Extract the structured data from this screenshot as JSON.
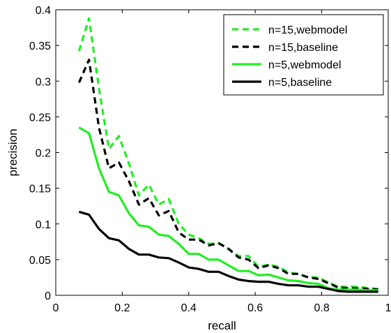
{
  "chart_data": {
    "type": "line",
    "title": "",
    "xlabel": "recall",
    "ylabel": "precision",
    "xlim": [
      0,
      1
    ],
    "ylim": [
      0,
      0.4
    ],
    "xticks": [
      0,
      0.2,
      0.4,
      0.6,
      0.8,
      1
    ],
    "xtick_labels": [
      "0",
      "0.2",
      "0.4",
      "0.6",
      "0.8",
      "1"
    ],
    "yticks": [
      0,
      0.05,
      0.1,
      0.15,
      0.2,
      0.25,
      0.3,
      0.35,
      0.4
    ],
    "ytick_labels": [
      "0",
      "0.05",
      "0.1",
      "0.15",
      "0.2",
      "0.25",
      "0.3",
      "0.35",
      "0.4"
    ],
    "grid": false,
    "legend_position": "top-right",
    "x": [
      0.07,
      0.1,
      0.13,
      0.16,
      0.19,
      0.22,
      0.25,
      0.28,
      0.31,
      0.34,
      0.37,
      0.4,
      0.43,
      0.46,
      0.49,
      0.52,
      0.55,
      0.58,
      0.61,
      0.64,
      0.67,
      0.7,
      0.73,
      0.76,
      0.79,
      0.82,
      0.85,
      0.88,
      0.91,
      0.94,
      0.97
    ],
    "series": [
      {
        "name": "n=15,webmodel",
        "color": "#22ee22",
        "style": "dashed",
        "values": [
          0.342,
          0.388,
          0.29,
          0.205,
          0.223,
          0.185,
          0.14,
          0.155,
          0.127,
          0.135,
          0.1,
          0.085,
          0.08,
          0.072,
          0.073,
          0.065,
          0.055,
          0.055,
          0.04,
          0.043,
          0.04,
          0.032,
          0.03,
          0.025,
          0.025,
          0.018,
          0.012,
          0.012,
          0.012,
          0.01,
          0.009
        ]
      },
      {
        "name": "n=15,baseline",
        "color": "#000000",
        "style": "dashed",
        "values": [
          0.298,
          0.33,
          0.235,
          0.178,
          0.186,
          0.16,
          0.127,
          0.136,
          0.112,
          0.118,
          0.088,
          0.078,
          0.078,
          0.07,
          0.073,
          0.065,
          0.053,
          0.05,
          0.038,
          0.042,
          0.038,
          0.03,
          0.03,
          0.025,
          0.023,
          0.017,
          0.011,
          0.01,
          0.01,
          0.009,
          0.008
        ]
      },
      {
        "name": "n=5,webmodel",
        "color": "#22ee22",
        "style": "solid",
        "values": [
          0.235,
          0.227,
          0.178,
          0.145,
          0.14,
          0.115,
          0.098,
          0.096,
          0.085,
          0.083,
          0.072,
          0.058,
          0.058,
          0.05,
          0.05,
          0.042,
          0.034,
          0.034,
          0.028,
          0.029,
          0.025,
          0.021,
          0.02,
          0.017,
          0.016,
          0.01,
          0.008,
          0.008,
          0.008,
          0.007,
          0.007
        ]
      },
      {
        "name": "n=5,baseline",
        "color": "#000000",
        "style": "solid",
        "values": [
          0.117,
          0.113,
          0.093,
          0.08,
          0.077,
          0.065,
          0.057,
          0.057,
          0.053,
          0.052,
          0.046,
          0.039,
          0.037,
          0.033,
          0.033,
          0.027,
          0.022,
          0.02,
          0.019,
          0.019,
          0.016,
          0.014,
          0.014,
          0.012,
          0.012,
          0.009,
          0.006,
          0.005,
          0.005,
          0.005,
          0.005
        ]
      }
    ]
  }
}
